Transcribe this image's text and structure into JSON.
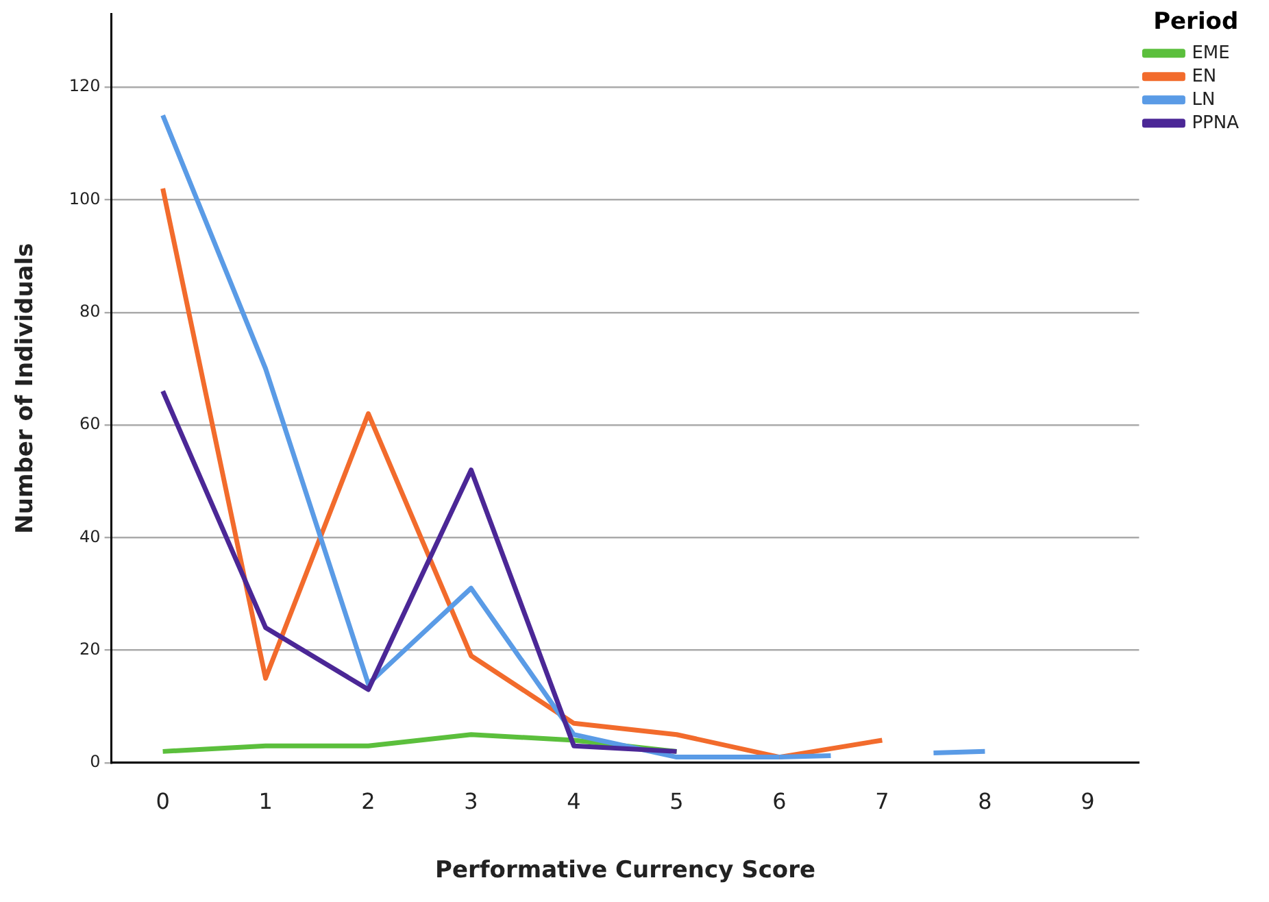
{
  "chart_data": {
    "type": "line",
    "xlabel": "Performative Currency Score",
    "ylabel": "Number of Individuals",
    "legend_title": "Period",
    "categories": [
      "0",
      "1",
      "2",
      "3",
      "4",
      "5",
      "6",
      "7",
      "8",
      "9"
    ],
    "series": [
      {
        "name": "EME",
        "color": "#5bbf3c",
        "values": [
          2,
          3,
          3,
          5,
          4,
          2,
          null,
          null,
          null,
          null
        ]
      },
      {
        "name": "EN",
        "color": "#f26b2c",
        "values": [
          102,
          15,
          62,
          19,
          7,
          5,
          1,
          4,
          null,
          null
        ]
      },
      {
        "name": "LN",
        "color": "#5a9be6",
        "values": [
          115,
          70,
          14,
          31,
          5,
          1,
          1,
          null,
          2,
          null
        ]
      },
      {
        "name": "PPNA",
        "color": "#4b2796",
        "values": [
          66,
          24,
          13,
          52,
          3,
          2,
          null,
          null,
          null,
          null
        ]
      }
    ],
    "ylim": [
      0,
      133
    ],
    "yticks": [
      0,
      20,
      40,
      60,
      80,
      100,
      120
    ],
    "grid": "y",
    "legend": "top right",
    "marker": "none",
    "line_style": "solid"
  }
}
